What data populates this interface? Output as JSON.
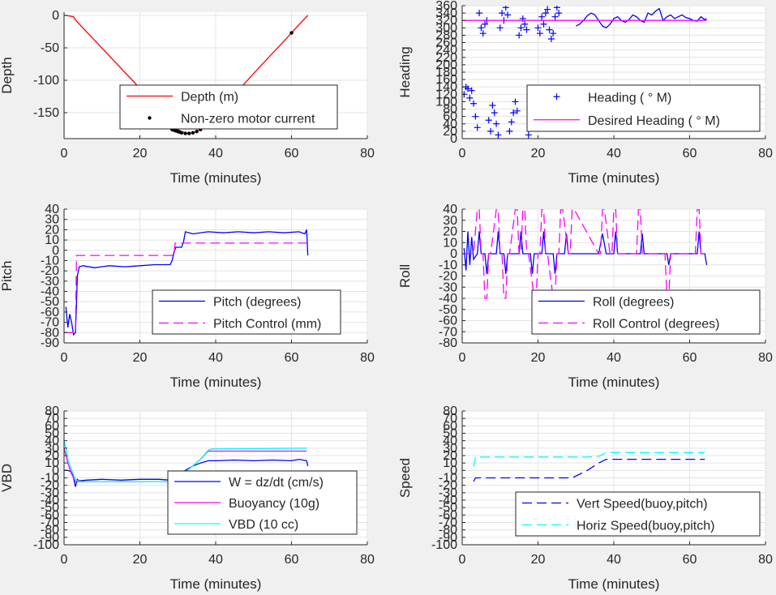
{
  "figure": {
    "background": "#f0f0f0",
    "axes_background": "#ffffff",
    "grid_color": "#e3e3e3",
    "axis_color": "#262626"
  },
  "chart_data": [
    {
      "id": "depth",
      "type": "line",
      "xlabel": "Time (minutes)",
      "ylabel": "Depth",
      "xlim": [
        0,
        80
      ],
      "ylim": [
        -190,
        5
      ],
      "xticks": [
        0,
        20,
        40,
        60,
        80
      ],
      "yticks": [
        0,
        -50,
        -100,
        -150
      ],
      "grid": true,
      "legend_position": "lower-right",
      "series": [
        {
          "name": "Depth (m)",
          "color": "#ff0000",
          "style": "line",
          "x": [
            0,
            0.5,
            2.5,
            3,
            8,
            13,
            18,
            23,
            27,
            29,
            30,
            31,
            32,
            33,
            34,
            35,
            36,
            38,
            42,
            47,
            52,
            57,
            60,
            62,
            64.3
          ],
          "y": [
            0,
            0,
            -2,
            -7,
            -38,
            -69,
            -100,
            -131,
            -156,
            -170,
            -176,
            -179,
            -181,
            -182,
            -181,
            -179,
            -175,
            -164,
            -140,
            -109,
            -77,
            -46,
            -27,
            -14,
            0
          ]
        },
        {
          "name": "Non-zero motor current",
          "color": "#000000",
          "style": "dots",
          "x": [
            28.5,
            29,
            29.5,
            30,
            30.5,
            31,
            32,
            33,
            34,
            35,
            36,
            37,
            60
          ],
          "y": [
            -176,
            -177,
            -178,
            -179,
            -180,
            -181,
            -182,
            -182,
            -181,
            -179,
            -176,
            -172,
            -27
          ]
        }
      ]
    },
    {
      "id": "heading",
      "type": "line",
      "xlabel": "Time (minutes)",
      "ylabel": "Heading",
      "xlim": [
        0,
        80
      ],
      "ylim": [
        0,
        360
      ],
      "xticks": [
        0,
        20,
        40,
        60,
        80
      ],
      "yticks": [
        0,
        20,
        40,
        60,
        80,
        100,
        120,
        140,
        160,
        180,
        200,
        220,
        240,
        260,
        280,
        300,
        320,
        340,
        360
      ],
      "grid": true,
      "legend_position": "lower-right",
      "series": [
        {
          "name": "Heading (  ° M)",
          "color": "#0000ff",
          "style": "plus",
          "x": [
            0.5,
            1,
            1.5,
            2,
            2.5,
            3,
            3.5,
            4,
            4.5,
            5,
            5.5,
            6,
            6.5,
            7,
            7.5,
            8,
            8.5,
            9,
            9.5,
            10,
            10.5,
            11,
            11.5,
            12,
            12.5,
            13,
            13.5,
            14,
            14.5,
            15,
            15.5,
            16,
            16.5,
            17,
            17.5,
            18,
            18.5,
            19,
            19.5,
            20,
            20.5,
            21,
            21.5,
            22,
            22.5,
            23,
            23.5,
            24,
            24.5,
            25,
            25.5,
            26,
            26.5,
            27,
            27.5,
            28,
            28.5,
            29
          ],
          "y": [
            120,
            140,
            135,
            110,
            130,
            95,
            60,
            30,
            340,
            300,
            285,
            310,
            320,
            50,
            20,
            90,
            70,
            40,
            10,
            300,
            340,
            320,
            355,
            335,
            20,
            45,
            70,
            100,
            75,
            280,
            300,
            325,
            310,
            295,
            10,
            60,
            40,
            70,
            55,
            300,
            285,
            330,
            310,
            340,
            350,
            295,
            270,
            285,
            330,
            355,
            340,
            95,
            80,
            110,
            60,
            40,
            65,
            50
          ]
        },
        {
          "name": "Heading (  ° M)",
          "color": "#0000ff",
          "style": "line",
          "x": [
            30,
            31,
            32,
            33,
            34,
            35,
            36,
            37,
            38,
            39,
            40,
            41,
            42,
            43,
            44,
            45,
            46,
            47,
            48,
            49,
            50,
            51,
            52,
            53,
            54,
            55,
            56,
            57,
            58,
            59,
            60,
            61,
            62,
            63,
            64,
            64.5
          ],
          "y": [
            305,
            310,
            320,
            333,
            340,
            335,
            320,
            305,
            300,
            310,
            325,
            330,
            320,
            315,
            322,
            335,
            330,
            320,
            315,
            340,
            335,
            345,
            352,
            320,
            330,
            335,
            325,
            330,
            335,
            328,
            325,
            320,
            318,
            330,
            322,
            325
          ]
        },
        {
          "name": "Desired Heading (     ° M)",
          "color": "#ff00ff",
          "style": "line",
          "x": [
            0,
            30,
            64.5
          ],
          "y": [
            320,
            320,
            320
          ]
        },
        {
          "name": "Desired Heading (     ° M)",
          "color": "#ff00ff",
          "style": "line",
          "x": [
            19,
            30
          ],
          "y": [
            55,
            55
          ]
        }
      ]
    },
    {
      "id": "pitch",
      "type": "line",
      "xlabel": "Time (minutes)",
      "ylabel": "Pitch",
      "xlim": [
        0,
        80
      ],
      "ylim": [
        -90,
        40
      ],
      "xticks": [
        0,
        20,
        40,
        60,
        80
      ],
      "yticks": [
        -90,
        -80,
        -70,
        -60,
        -50,
        -40,
        -30,
        -20,
        -10,
        0,
        10,
        20,
        30,
        40
      ],
      "grid": true,
      "legend_position": "lower-right",
      "series": [
        {
          "name": "Pitch (degrees)",
          "color": "#0000ff",
          "style": "line",
          "x": [
            0.5,
            1,
            1.5,
            2,
            2.5,
            3,
            3.2,
            3.5,
            4,
            5,
            8,
            12,
            16,
            20,
            24,
            28,
            28.5,
            29,
            29.5,
            31,
            31.5,
            32,
            34,
            38,
            42,
            46,
            50,
            54,
            58,
            62,
            63.5,
            64,
            64.3
          ],
          "y": [
            -55,
            -75,
            -62,
            -70,
            -82,
            -80,
            -60,
            -25,
            -16,
            -15,
            -17,
            -15,
            -16,
            -15,
            -14,
            -14,
            -10,
            -2,
            3,
            3,
            8,
            18,
            16,
            18,
            17,
            18,
            17,
            18,
            17,
            18,
            16,
            20,
            -5
          ]
        },
        {
          "name": "Pitch Control (mm)",
          "color": "#ff00ff",
          "style": "dash",
          "x": [
            0,
            3,
            3.3,
            29,
            29.3,
            64
          ],
          "y": [
            -80,
            -80,
            -5,
            -5,
            7,
            7
          ]
        }
      ]
    },
    {
      "id": "roll",
      "type": "line",
      "xlabel": "Time (minutes)",
      "ylabel": "Roll",
      "xlim": [
        0,
        80
      ],
      "ylim": [
        -80,
        40
      ],
      "xticks": [
        0,
        20,
        40,
        60,
        80
      ],
      "yticks": [
        -80,
        -70,
        -60,
        -50,
        -40,
        -30,
        -20,
        -10,
        0,
        10,
        20,
        30,
        40
      ],
      "grid": true,
      "legend_position": "lower-right",
      "series": [
        {
          "name": "Roll (degrees)",
          "color": "#0000ff",
          "style": "line",
          "x": [
            0.5,
            1,
            1.5,
            2,
            2.5,
            3,
            4,
            4.5,
            5,
            6,
            6.5,
            7,
            8,
            9,
            9.5,
            10,
            11,
            11.5,
            12,
            13,
            15,
            15.5,
            16,
            17,
            18,
            18.5,
            19,
            20,
            21,
            21.5,
            22,
            23,
            24,
            24.5,
            25,
            26,
            27,
            27.5,
            28,
            29,
            36,
            37,
            38,
            39,
            40,
            40.5,
            41,
            47,
            47.5,
            48,
            49,
            54,
            54.5,
            55,
            62,
            62.5,
            63,
            64,
            64.5
          ],
          "y": [
            5,
            -15,
            20,
            -10,
            15,
            -5,
            0,
            20,
            0,
            0,
            -18,
            0,
            0,
            0,
            20,
            0,
            0,
            -18,
            0,
            0,
            0,
            20,
            0,
            0,
            0,
            -18,
            0,
            0,
            0,
            20,
            0,
            0,
            0,
            -18,
            0,
            0,
            0,
            18,
            0,
            0,
            0,
            18,
            0,
            0,
            0,
            20,
            0,
            0,
            18,
            0,
            0,
            0,
            -10,
            0,
            0,
            20,
            0,
            0,
            -10
          ]
        },
        {
          "name": "Roll Control (degrees)",
          "color": "#ff00ff",
          "style": "dash",
          "x": [
            0,
            3,
            4,
            4.5,
            5,
            5.5,
            6,
            6.5,
            7,
            7.5,
            9,
            9.5,
            10,
            10.5,
            11,
            11.5,
            12,
            12.5,
            14,
            14.5,
            15,
            15.5,
            16,
            16.5,
            17,
            17.5,
            19,
            19.5,
            20,
            20.5,
            21,
            21.5,
            22,
            22.5,
            24,
            24.5,
            25,
            25.5,
            26,
            26.5,
            28,
            28.5,
            29,
            29.5,
            36,
            36.5,
            37,
            37.5,
            39,
            39.5,
            40,
            40.5,
            41,
            41.5,
            46,
            46.5,
            47,
            47.5,
            48,
            48.5,
            53,
            53.5,
            54,
            54.5,
            55,
            55.5,
            61,
            61.5,
            62,
            62.5,
            63,
            63.5,
            64
          ],
          "y": [
            0,
            0,
            40,
            40,
            0,
            0,
            -40,
            -40,
            0,
            0,
            40,
            40,
            0,
            0,
            -40,
            -40,
            0,
            0,
            40,
            40,
            0,
            0,
            40,
            40,
            0,
            0,
            -40,
            -40,
            0,
            0,
            40,
            40,
            0,
            0,
            -40,
            -40,
            0,
            0,
            40,
            40,
            0,
            0,
            40,
            40,
            0,
            0,
            40,
            40,
            0,
            0,
            40,
            40,
            0,
            0,
            0,
            40,
            40,
            0,
            0,
            0,
            0,
            0,
            -40,
            -40,
            0,
            0,
            0,
            0,
            40,
            40,
            0,
            0,
            0
          ]
        }
      ]
    },
    {
      "id": "vbd",
      "type": "line",
      "xlabel": "Time (minutes)",
      "ylabel": "VBD",
      "xlim": [
        0,
        80
      ],
      "ylim": [
        -100,
        80
      ],
      "xticks": [
        0,
        20,
        40,
        60,
        80
      ],
      "yticks": [
        -100,
        -90,
        -80,
        -70,
        -60,
        -50,
        -40,
        -30,
        -20,
        -10,
        0,
        10,
        20,
        30,
        40,
        50,
        60,
        70,
        80
      ],
      "ytick_labels": [
        "-100",
        "-90",
        "-80",
        "-70",
        "-60",
        "-50",
        "-40",
        "-30",
        "-20",
        "-10",
        "0",
        "10",
        "20",
        "30",
        "40",
        "50",
        "60",
        "70",
        "80"
      ],
      "grid": true,
      "legend_position": "lower-right",
      "series": [
        {
          "name": "W = dz/dt (cm/s)",
          "color": "#0000ff",
          "style": "line",
          "x": [
            0,
            1,
            2,
            2.5,
            3,
            3.5,
            4,
            6,
            10,
            15,
            20,
            25,
            28,
            30,
            32,
            34,
            36,
            38,
            40,
            45,
            50,
            55,
            60,
            62,
            64,
            64.3
          ],
          "y": [
            0,
            0,
            -2,
            -10,
            -22,
            -12,
            -14,
            -13,
            -12,
            -13,
            -12,
            -12,
            -13,
            -7,
            0,
            6,
            10,
            13,
            13,
            14,
            13,
            14,
            13,
            15,
            13,
            6
          ]
        },
        {
          "name": "Buoyancy (10g)",
          "color": "#ff00ff",
          "style": "line",
          "x": [
            0,
            1,
            2,
            3,
            4,
            29,
            30,
            33,
            36,
            38,
            64
          ],
          "y": [
            30,
            10,
            -5,
            -15,
            -15,
            -15,
            -10,
            2,
            15,
            26,
            26
          ]
        },
        {
          "name": "VBD (10 cc)",
          "color": "#00ffff",
          "style": "line",
          "x": [
            0,
            0.5,
            1,
            2,
            3,
            4,
            29,
            30,
            33,
            36,
            38,
            39,
            64
          ],
          "y": [
            40,
            30,
            15,
            0,
            -12,
            -15,
            -15,
            -10,
            2,
            15,
            27,
            29,
            30
          ]
        }
      ]
    },
    {
      "id": "speed",
      "type": "line",
      "xlabel": "Time (minutes)",
      "ylabel": "Speed",
      "xlim": [
        0,
        80
      ],
      "ylim": [
        -100,
        80
      ],
      "xticks": [
        0,
        20,
        40,
        60,
        80
      ],
      "yticks": [
        -100,
        -90,
        -80,
        -70,
        -60,
        -50,
        -40,
        -30,
        -20,
        -10,
        0,
        10,
        20,
        30,
        40,
        50,
        60,
        70,
        80
      ],
      "ytick_labels": [
        "-100",
        "-90",
        "-80",
        "-70",
        "-60",
        "-50",
        "-40",
        "-30",
        "-20",
        "-10",
        "0",
        "10",
        "20",
        "30",
        "40",
        "50",
        "60",
        "70",
        "80"
      ],
      "grid": true,
      "legend_position": "lower-right",
      "series": [
        {
          "name": "Vert Speed(buoy,pitch)",
          "color": "#0000ff",
          "style": "dash",
          "x": [
            3,
            3.5,
            10,
            20,
            29,
            33,
            36,
            38,
            40,
            50,
            60,
            64
          ],
          "y": [
            -15,
            -10,
            -10,
            -10,
            -10,
            0,
            10,
            15,
            15,
            15,
            15,
            15
          ]
        },
        {
          "name": "Horiz Speed(buoy,pitch)",
          "color": "#00ffff",
          "style": "dash",
          "x": [
            3,
            3.5,
            10,
            20,
            29,
            33,
            36,
            38,
            40,
            50,
            60,
            64
          ],
          "y": [
            5,
            18,
            18,
            18,
            18,
            18,
            19,
            24,
            24,
            24,
            24,
            24
          ]
        }
      ]
    }
  ]
}
